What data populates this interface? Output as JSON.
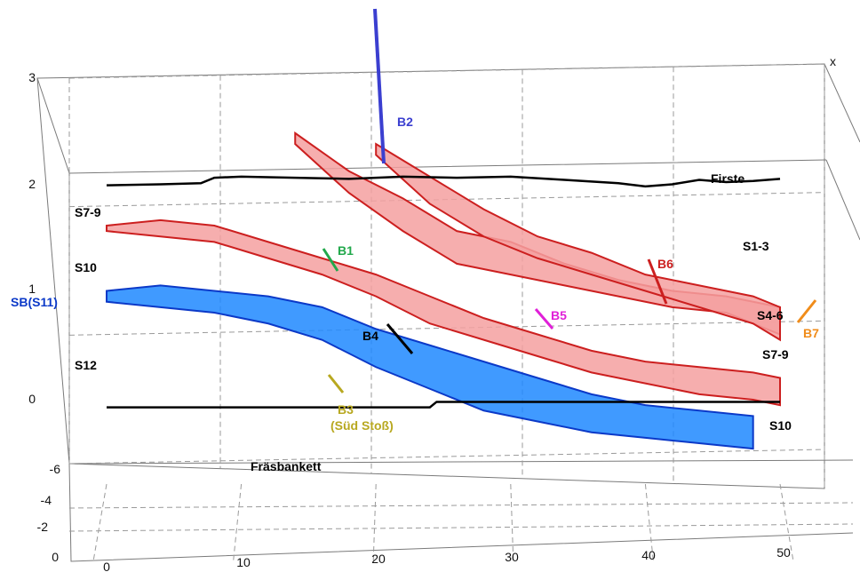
{
  "chart_data": {
    "type": "line",
    "title": "",
    "xlabel": "",
    "ylabel": "",
    "zlabel": "",
    "xlim": [
      0,
      50
    ],
    "ylim": [
      -6,
      0
    ],
    "zlim": [
      0,
      3
    ],
    "x_ticks": [
      "0",
      "10",
      "20",
      "30",
      "40",
      "50"
    ],
    "y_ticks": [
      "-6",
      "-4",
      "-2",
      "0"
    ],
    "z_ticks": [
      "0",
      "1",
      "2",
      "3"
    ],
    "grid": true,
    "corner_mark": "x",
    "series": [
      {
        "name": "Firste",
        "color": "#000000",
        "kind": "line",
        "x": [
          0,
          4,
          7,
          8,
          10,
          14,
          18,
          22,
          26,
          30,
          34,
          38,
          40,
          42,
          44,
          46,
          48,
          50
        ],
        "z": [
          1.97,
          1.98,
          1.99,
          2.04,
          2.05,
          2.04,
          2.03,
          2.05,
          2.04,
          2.05,
          2.02,
          1.99,
          1.96,
          1.98,
          2.02,
          2.0,
          2.01,
          2.03
        ]
      },
      {
        "name": "Fräsbankett",
        "color": "#000000",
        "kind": "line",
        "x": [
          0,
          24,
          24.5,
          50
        ],
        "z": [
          -0.07,
          -0.07,
          -0.02,
          -0.02
        ]
      },
      {
        "name": "S7-9",
        "color": "#cc1f1f",
        "kind": "band",
        "x": [
          14,
          18,
          22,
          26,
          30,
          34,
          38,
          42,
          46,
          50
        ],
        "upper": [
          2.45,
          2.1,
          1.85,
          1.55,
          1.45,
          1.25,
          1.1,
          1.0,
          0.95,
          0.85
        ],
        "lower": [
          2.35,
          1.9,
          1.55,
          1.25,
          1.15,
          1.05,
          0.95,
          0.85,
          0.8,
          0.6
        ]
      },
      {
        "name": "S1-3",
        "color": "#cc1f1f",
        "kind": "band",
        "x": [
          20,
          24,
          28,
          32,
          36,
          40,
          44,
          48,
          50
        ],
        "upper": [
          2.35,
          2.05,
          1.75,
          1.5,
          1.35,
          1.15,
          1.05,
          0.95,
          0.85
        ],
        "lower": [
          2.25,
          1.8,
          1.5,
          1.3,
          1.15,
          1.0,
          0.85,
          0.7,
          0.55
        ]
      },
      {
        "name": "S10",
        "color": "#cc1f1f",
        "kind": "band",
        "x": [
          0,
          4,
          8,
          12,
          16,
          20,
          24,
          28,
          32,
          36,
          40,
          44,
          48,
          50
        ],
        "upper": [
          1.6,
          1.65,
          1.6,
          1.45,
          1.3,
          1.15,
          0.95,
          0.75,
          0.6,
          0.45,
          0.35,
          0.3,
          0.25,
          0.2
        ],
        "lower": [
          1.55,
          1.5,
          1.45,
          1.3,
          1.15,
          0.95,
          0.7,
          0.55,
          0.4,
          0.25,
          0.15,
          0.05,
          0.0,
          -0.05
        ]
      },
      {
        "name": "SB(S11)",
        "color": "#0b39c8",
        "kind": "band",
        "x": [
          0,
          4,
          8,
          12,
          16,
          20,
          24,
          28,
          32,
          36,
          40,
          44,
          48
        ],
        "upper": [
          1.0,
          1.05,
          1.0,
          0.95,
          0.85,
          0.65,
          0.5,
          0.35,
          0.2,
          0.05,
          -0.05,
          -0.1,
          -0.15
        ],
        "lower": [
          0.9,
          0.85,
          0.8,
          0.7,
          0.55,
          0.3,
          0.1,
          -0.1,
          -0.2,
          -0.3,
          -0.35,
          -0.4,
          -0.45
        ]
      }
    ],
    "annotations": [
      {
        "text": "B2",
        "color": "#3b3fd0"
      },
      {
        "text": "B1",
        "color": "#21a84b"
      },
      {
        "text": "B6",
        "color": "#cc1f1f"
      },
      {
        "text": "B5",
        "color": "#e020d8"
      },
      {
        "text": "B4",
        "color": "#000000"
      },
      {
        "text": "B3",
        "color": "#b8a820"
      },
      {
        "text": "(Süd Stoß)",
        "color": "#b8a820"
      },
      {
        "text": "B7",
        "color": "#f08c1a"
      },
      {
        "text": "S7-9",
        "color": "#000000"
      },
      {
        "text": "S10",
        "color": "#000000"
      },
      {
        "text": "S12",
        "color": "#000000"
      },
      {
        "text": "S1-3",
        "color": "#000000"
      },
      {
        "text": "S4-6",
        "color": "#000000"
      },
      {
        "text": "S7-9",
        "color": "#000000"
      },
      {
        "text": "S10",
        "color": "#000000"
      },
      {
        "text": "Firste",
        "color": "#000000"
      },
      {
        "text": "Fräsbankett",
        "color": "#000000"
      },
      {
        "text": "SB(S11)",
        "color": "#0b39c8"
      }
    ]
  }
}
